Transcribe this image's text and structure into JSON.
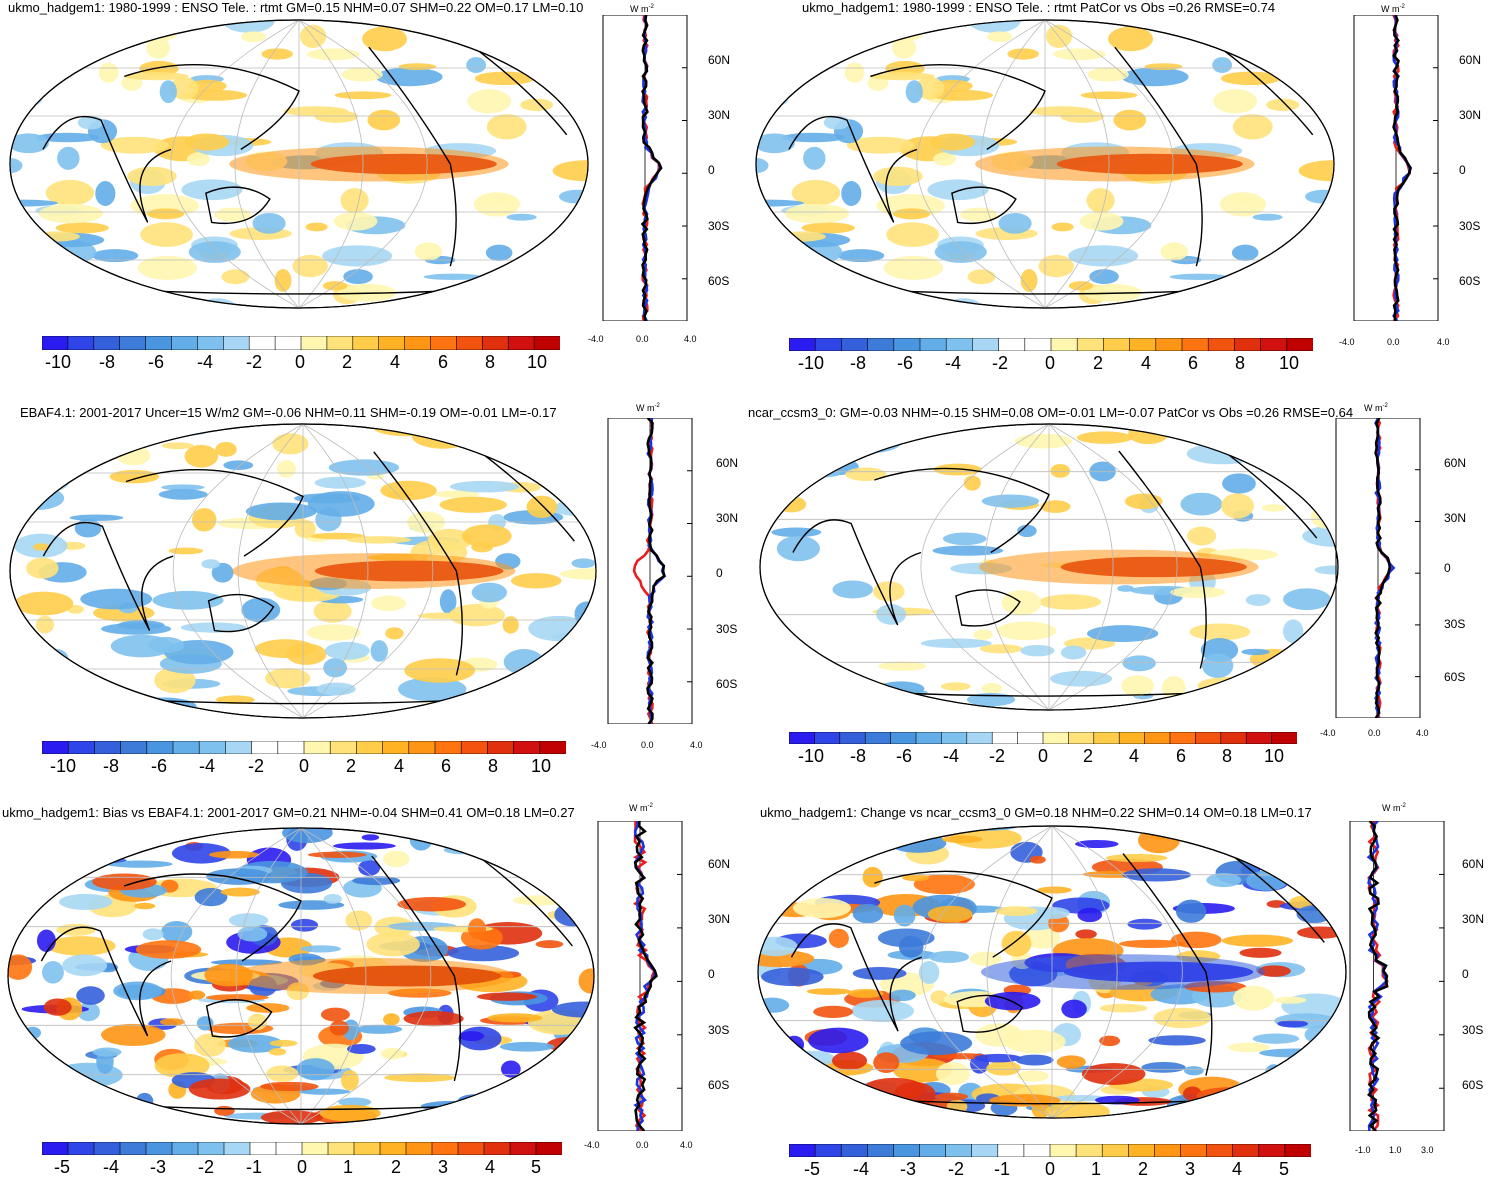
{
  "units_label": "W m",
  "units_exp": "-2",
  "lat_labels": [
    "60N",
    "30N",
    "0",
    "30S",
    "60S"
  ],
  "panels": [
    {
      "title": "ukmo_hadgem1: 1980-1999 : ENSO Tele. : rtmt GM=0.15 NHM=0.07 SHM=0.22 OM=0.17 LM=0.10",
      "xticks": [
        "-4.0",
        "0.0",
        "4.0"
      ],
      "cbar_labels": [
        "-10",
        "-8",
        "-6",
        "-4",
        "-2",
        "0",
        "2",
        "4",
        "6",
        "8",
        "10"
      ]
    },
    {
      "title": "ukmo_hadgem1: 1980-1999 : ENSO Tele. : rtmt PatCor vs Obs =0.26 RMSE=0.74",
      "xticks": [
        "-4.0",
        "0.0",
        "4.0"
      ],
      "cbar_labels": [
        "-10",
        "-8",
        "-6",
        "-4",
        "-2",
        "0",
        "2",
        "4",
        "6",
        "8",
        "10"
      ]
    },
    {
      "title": "EBAF4.1: 2001-2017 Uncer=15 W/m2 GM=-0.06 NHM=0.11 SHM=-0.19 OM=-0.01 LM=-0.17",
      "xticks": [
        "-4.0",
        "0.0",
        "4.0"
      ],
      "cbar_labels": [
        "-10",
        "-8",
        "-6",
        "-4",
        "-2",
        "0",
        "2",
        "4",
        "6",
        "8",
        "10"
      ]
    },
    {
      "title": "ncar_ccsm3_0: GM=-0.03 NHM=-0.15 SHM=0.08 OM=-0.01 LM=-0.07 PatCor vs Obs =0.26 RMSE=0.64",
      "xticks": [
        "-4.0",
        "0.0",
        "4.0"
      ],
      "cbar_labels": [
        "-10",
        "-8",
        "-6",
        "-4",
        "-2",
        "0",
        "2",
        "4",
        "6",
        "8",
        "10"
      ]
    },
    {
      "title": "ukmo_hadgem1: Bias vs EBAF4.1: 2001-2017 GM=0.21 NHM=-0.04 SHM=0.41 OM=0.18 LM=0.27",
      "xticks": [
        "-4.0",
        "0.0",
        "4.0"
      ],
      "cbar_labels": [
        "-5",
        "-4",
        "-3",
        "-2",
        "-1",
        "0",
        "1",
        "2",
        "3",
        "4",
        "5"
      ]
    },
    {
      "title": "ukmo_hadgem1: Change vs ncar_ccsm3_0 GM=0.18 NHM=0.22 SHM=0.14 OM=0.18 LM=0.17",
      "xticks": [
        "-1.0",
        "1.0",
        "3.0"
      ],
      "cbar_labels": [
        "-5",
        "-4",
        "-3",
        "-2",
        "-1",
        "0",
        "1",
        "2",
        "3",
        "4",
        "5"
      ]
    }
  ],
  "colors": {
    "cbar": [
      "#2a1cf0",
      "#2f45e8",
      "#3560dc",
      "#3c7bd8",
      "#4a95e0",
      "#63ade8",
      "#7fc1ee",
      "#a7d7f4",
      "#ffffff",
      "#ffffff",
      "#fff6b0",
      "#ffe27a",
      "#ffcd4a",
      "#ffb324",
      "#ff9514",
      "#ff7410",
      "#f2530f",
      "#e0300e",
      "#d11010",
      "#c00000"
    ],
    "line_obs": "#e81d1d",
    "line_model": "#1d33e0",
    "line_mean": "#000000"
  }
}
